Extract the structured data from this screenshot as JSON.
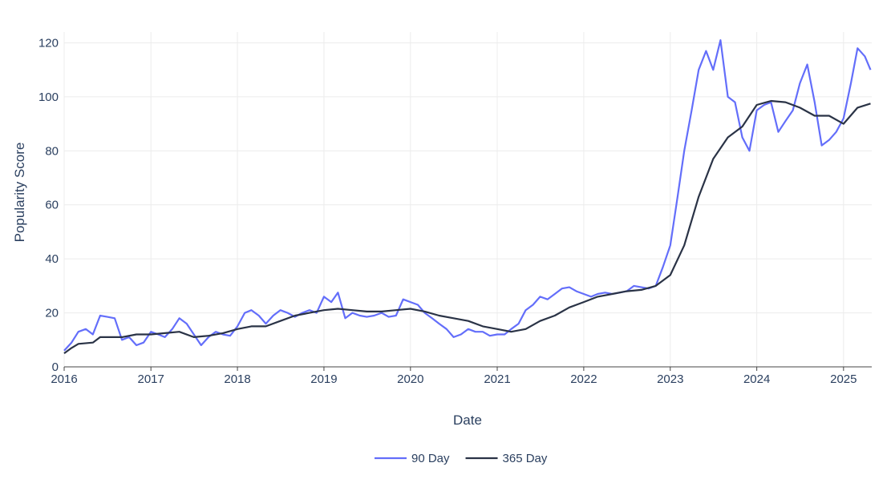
{
  "chart_data": {
    "type": "line",
    "title": "",
    "xlabel": "Date",
    "ylabel": "Popularity Score",
    "x_type": "date",
    "xlim": [
      "2016-01-01",
      "2025-04-30"
    ],
    "ylim": [
      0,
      124
    ],
    "grid": true,
    "legend_position": "bottom-center",
    "x_ticks": [
      "2016",
      "2017",
      "2018",
      "2019",
      "2020",
      "2021",
      "2022",
      "2023",
      "2024",
      "2025"
    ],
    "y_ticks": [
      0,
      20,
      40,
      60,
      80,
      100,
      120
    ],
    "series": [
      {
        "name": "90 Day",
        "color": "#636efa",
        "points": [
          [
            "2016-01-01",
            6
          ],
          [
            "2016-02-01",
            9
          ],
          [
            "2016-03-01",
            13
          ],
          [
            "2016-04-01",
            14
          ],
          [
            "2016-05-01",
            12
          ],
          [
            "2016-06-01",
            19
          ],
          [
            "2016-07-01",
            18.5
          ],
          [
            "2016-08-01",
            18
          ],
          [
            "2016-09-01",
            10
          ],
          [
            "2016-10-01",
            11
          ],
          [
            "2016-11-01",
            8
          ],
          [
            "2016-12-01",
            9
          ],
          [
            "2017-01-01",
            13
          ],
          [
            "2017-02-01",
            12
          ],
          [
            "2017-03-01",
            11
          ],
          [
            "2017-04-01",
            14
          ],
          [
            "2017-05-01",
            18
          ],
          [
            "2017-06-01",
            16
          ],
          [
            "2017-07-01",
            12
          ],
          [
            "2017-08-01",
            8
          ],
          [
            "2017-09-01",
            11
          ],
          [
            "2017-10-01",
            13
          ],
          [
            "2017-11-01",
            12
          ],
          [
            "2017-12-01",
            11.5
          ],
          [
            "2018-01-01",
            15
          ],
          [
            "2018-02-01",
            20
          ],
          [
            "2018-03-01",
            21
          ],
          [
            "2018-04-01",
            19
          ],
          [
            "2018-05-01",
            16
          ],
          [
            "2018-06-01",
            19
          ],
          [
            "2018-07-01",
            21
          ],
          [
            "2018-08-01",
            20
          ],
          [
            "2018-09-01",
            18.5
          ],
          [
            "2018-10-01",
            20
          ],
          [
            "2018-11-01",
            21
          ],
          [
            "2018-12-01",
            20
          ],
          [
            "2019-01-01",
            26
          ],
          [
            "2019-02-01",
            24
          ],
          [
            "2019-03-01",
            27.5
          ],
          [
            "2019-04-01",
            18
          ],
          [
            "2019-05-01",
            20
          ],
          [
            "2019-06-01",
            19
          ],
          [
            "2019-07-01",
            18.5
          ],
          [
            "2019-08-01",
            19
          ],
          [
            "2019-09-01",
            20
          ],
          [
            "2019-10-01",
            18.5
          ],
          [
            "2019-11-01",
            19
          ],
          [
            "2019-12-01",
            25
          ],
          [
            "2020-01-01",
            24
          ],
          [
            "2020-02-01",
            23
          ],
          [
            "2020-03-01",
            20
          ],
          [
            "2020-04-01",
            18
          ],
          [
            "2020-05-01",
            16
          ],
          [
            "2020-06-01",
            14
          ],
          [
            "2020-07-01",
            11
          ],
          [
            "2020-08-01",
            12
          ],
          [
            "2020-09-01",
            14
          ],
          [
            "2020-10-01",
            13
          ],
          [
            "2020-11-01",
            13
          ],
          [
            "2020-12-01",
            11.5
          ],
          [
            "2021-01-01",
            12
          ],
          [
            "2021-02-01",
            12
          ],
          [
            "2021-03-01",
            14
          ],
          [
            "2021-04-01",
            16
          ],
          [
            "2021-05-01",
            21
          ],
          [
            "2021-06-01",
            23
          ],
          [
            "2021-07-01",
            26
          ],
          [
            "2021-08-01",
            25
          ],
          [
            "2021-09-01",
            27
          ],
          [
            "2021-10-01",
            29
          ],
          [
            "2021-11-01",
            29.5
          ],
          [
            "2021-12-01",
            28
          ],
          [
            "2022-01-01",
            27
          ],
          [
            "2022-02-01",
            26
          ],
          [
            "2022-03-01",
            27
          ],
          [
            "2022-04-01",
            27.5
          ],
          [
            "2022-05-01",
            27
          ],
          [
            "2022-06-01",
            27.5
          ],
          [
            "2022-07-01",
            28
          ],
          [
            "2022-08-01",
            30
          ],
          [
            "2022-09-01",
            29.5
          ],
          [
            "2022-10-01",
            29
          ],
          [
            "2022-11-01",
            30
          ],
          [
            "2022-12-01",
            37
          ],
          [
            "2023-01-01",
            45
          ],
          [
            "2023-02-01",
            63
          ],
          [
            "2023-03-01",
            80
          ],
          [
            "2023-04-01",
            95
          ],
          [
            "2023-05-01",
            110
          ],
          [
            "2023-06-01",
            117
          ],
          [
            "2023-07-01",
            110
          ],
          [
            "2023-08-01",
            121
          ],
          [
            "2023-09-01",
            100
          ],
          [
            "2023-10-01",
            98
          ],
          [
            "2023-11-01",
            85
          ],
          [
            "2023-12-01",
            80
          ],
          [
            "2024-01-01",
            95
          ],
          [
            "2024-02-01",
            97
          ],
          [
            "2024-03-01",
            98
          ],
          [
            "2024-04-01",
            87
          ],
          [
            "2024-05-01",
            91
          ],
          [
            "2024-06-01",
            95
          ],
          [
            "2024-07-01",
            105
          ],
          [
            "2024-08-01",
            112
          ],
          [
            "2024-09-01",
            98
          ],
          [
            "2024-10-01",
            82
          ],
          [
            "2024-11-01",
            84
          ],
          [
            "2024-12-01",
            87
          ],
          [
            "2025-01-01",
            92
          ],
          [
            "2025-02-01",
            105
          ],
          [
            "2025-03-01",
            118
          ],
          [
            "2025-04-01",
            115
          ],
          [
            "2025-04-25",
            110
          ]
        ]
      },
      {
        "name": "365 Day",
        "color": "#2a3346",
        "points": [
          [
            "2016-01-01",
            5
          ],
          [
            "2016-02-01",
            7
          ],
          [
            "2016-03-01",
            8.5
          ],
          [
            "2016-05-01",
            9
          ],
          [
            "2016-06-01",
            11
          ],
          [
            "2016-09-01",
            11
          ],
          [
            "2016-11-01",
            12
          ],
          [
            "2017-01-01",
            12
          ],
          [
            "2017-03-01",
            12.5
          ],
          [
            "2017-05-01",
            13
          ],
          [
            "2017-07-01",
            11
          ],
          [
            "2017-09-01",
            11.5
          ],
          [
            "2017-11-01",
            12.5
          ],
          [
            "2018-01-01",
            14
          ],
          [
            "2018-03-01",
            15
          ],
          [
            "2018-05-01",
            15
          ],
          [
            "2018-07-01",
            17
          ],
          [
            "2018-09-01",
            19
          ],
          [
            "2018-11-01",
            20
          ],
          [
            "2019-01-01",
            21
          ],
          [
            "2019-03-01",
            21.5
          ],
          [
            "2019-05-01",
            21
          ],
          [
            "2019-07-01",
            20.5
          ],
          [
            "2019-09-01",
            20.5
          ],
          [
            "2019-11-01",
            21
          ],
          [
            "2020-01-01",
            21.5
          ],
          [
            "2020-03-01",
            20.5
          ],
          [
            "2020-05-01",
            19
          ],
          [
            "2020-07-01",
            18
          ],
          [
            "2020-09-01",
            17
          ],
          [
            "2020-11-01",
            15
          ],
          [
            "2021-01-01",
            14
          ],
          [
            "2021-03-01",
            13
          ],
          [
            "2021-05-01",
            14
          ],
          [
            "2021-07-01",
            17
          ],
          [
            "2021-09-01",
            19
          ],
          [
            "2021-11-01",
            22
          ],
          [
            "2022-01-01",
            24
          ],
          [
            "2022-03-01",
            26
          ],
          [
            "2022-05-01",
            27
          ],
          [
            "2022-07-01",
            28
          ],
          [
            "2022-09-01",
            28.5
          ],
          [
            "2022-11-01",
            30
          ],
          [
            "2023-01-01",
            34
          ],
          [
            "2023-03-01",
            45
          ],
          [
            "2023-05-01",
            63
          ],
          [
            "2023-07-01",
            77
          ],
          [
            "2023-09-01",
            85
          ],
          [
            "2023-11-01",
            89
          ],
          [
            "2024-01-01",
            97
          ],
          [
            "2024-03-01",
            98.5
          ],
          [
            "2024-05-01",
            98
          ],
          [
            "2024-07-01",
            96
          ],
          [
            "2024-09-01",
            93
          ],
          [
            "2024-11-01",
            93
          ],
          [
            "2025-01-01",
            90
          ],
          [
            "2025-03-01",
            96
          ],
          [
            "2025-04-25",
            97.5
          ]
        ]
      }
    ]
  }
}
